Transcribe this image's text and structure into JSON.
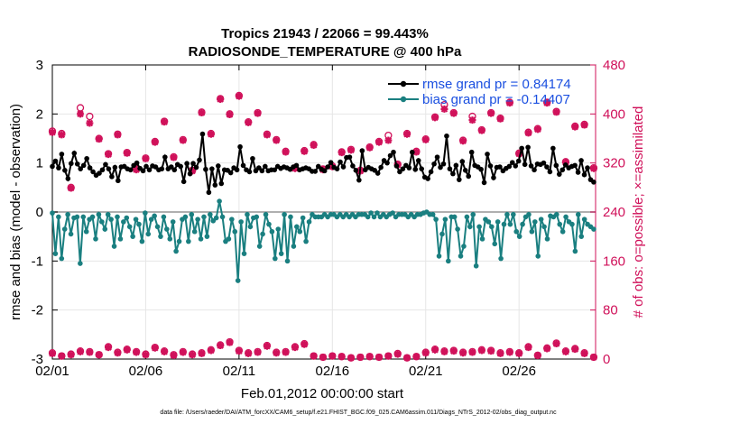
{
  "chart_data": {
    "type": "line",
    "title_line1": "Tropics 21943 / 22066 = 99.443%",
    "title_line2": "RADIOSONDE_TEMPERATURE @ 400 hPa",
    "xlabel": "Feb.01,2012 00:00:00 start",
    "ylabel": "rmse and bias (model - observation)",
    "ylabel_right": "# of obs: o=possible; ×=assimilated",
    "footer": "data file: /Users/raeder/DAI/ATM_forcXX/CAM6_setup/f.e21.FHIST_BGC.f09_025.CAM6assim.011/Diags_NTrS_2012-02/obs_diag_output.nc",
    "xlim": [
      0,
      29.1
    ],
    "ylim": [
      -3,
      3
    ],
    "ylim_right": [
      0,
      480
    ],
    "x_ticks": [
      0,
      5,
      10,
      15,
      20,
      25
    ],
    "x_tick_labels": [
      "02/01",
      "02/06",
      "02/11",
      "02/16",
      "02/21",
      "02/26"
    ],
    "y_ticks": [
      -3,
      -2,
      -1,
      0,
      1,
      2,
      3
    ],
    "y_tick_labels": [
      "-3",
      "-2",
      "-1",
      "0",
      "1",
      "2",
      "3"
    ],
    "y_ticks_right": [
      0,
      80,
      160,
      240,
      320,
      400,
      480
    ],
    "y_tick_labels_right": [
      "0",
      "80",
      "160",
      "240",
      "320",
      "400",
      "480"
    ],
    "legend": [
      "rmse grand pr = 0.84174",
      "bias grand pr = -0.14407"
    ],
    "series": [
      {
        "name": "rmse",
        "color": "#000000",
        "values": [
          0.93,
          1.04,
          0.9,
          1.18,
          0.85,
          0.68,
          0.99,
          1.2,
          0.98,
          0.88,
          0.95,
          1.09,
          0.9,
          0.82,
          0.75,
          0.79,
          0.86,
          0.97,
          0.88,
          0.72,
          0.91,
          0.64,
          0.92,
          0.93,
          0.88,
          0.86,
          0.95,
          1.0,
          0.89,
          0.84,
          0.93,
          0.86,
          0.94,
          0.92,
          0.86,
          0.88,
          1.12,
          0.88,
          0.92,
          0.86,
          0.97,
          0.93,
          0.62,
          0.99,
          0.78,
          0.99,
          0.91,
          1.06,
          1.59,
          0.87,
          0.4,
          0.88,
          0.55,
          0.94,
          0.58,
          0.86,
          0.85,
          0.8,
          0.9,
          0.86,
          1.33,
          0.95,
          0.86,
          0.82,
          1.09,
          0.84,
          0.9,
          0.84,
          0.93,
          0.84,
          0.86,
          0.86,
          0.93,
          0.89,
          0.92,
          0.9,
          0.87,
          0.92,
          0.95,
          0.86,
          0.88,
          0.9,
          0.88,
          0.83,
          0.83,
          0.93,
          0.87,
          0.84,
          0.92,
          1.01,
          0.91,
          0.88,
          1.02,
          0.92,
          1.11,
          1.12,
          0.94,
          0.85,
          0.65,
          1.25,
          0.86,
          0.91,
          0.88,
          0.85,
          0.79,
          0.91,
          1.05,
          1.0,
          1.15,
          1.22,
          0.94,
          0.82,
          0.88,
          0.95,
          0.9,
          1.22,
          0.87,
          1.05,
          0.88,
          0.71,
          0.68,
          0.82,
          0.98,
          1.12,
          0.91,
          0.98,
          1.55,
          0.88,
          0.78,
          0.95,
          0.66,
          1.03,
          0.85,
          0.73,
          1.22,
          0.95,
          0.92,
          0.87,
          0.6,
          1.18,
          0.94,
          0.7,
          0.91,
          0.92,
          0.84,
          0.89,
          0.93,
          1.01,
          0.94,
          1.04,
          1.3,
          0.97,
          1.32,
          0.94,
          0.86,
          0.98,
          0.97,
          1.0,
          0.92,
          0.82,
          1.3,
          0.95,
          0.77,
          0.86,
          0.96,
          0.9,
          0.93,
          0.95,
          0.81,
          1.05,
          0.76,
          0.9,
          0.66,
          0.61
        ]
      },
      {
        "name": "bias",
        "color": "#1a7f80",
        "values": [
          -0.02,
          -0.85,
          -0.1,
          -0.95,
          -0.35,
          -0.05,
          -0.45,
          -0.12,
          -0.1,
          -1.05,
          -0.1,
          -0.4,
          -0.15,
          -0.1,
          -0.55,
          -0.05,
          -0.2,
          -0.35,
          -0.05,
          -0.15,
          -0.7,
          -0.1,
          -0.55,
          -0.2,
          -0.12,
          -0.3,
          -0.5,
          -0.15,
          -0.25,
          -0.6,
          -0.02,
          -0.45,
          -0.15,
          -0.08,
          -0.3,
          -0.5,
          -0.1,
          -0.35,
          -0.55,
          -0.2,
          -0.8,
          -0.6,
          -0.15,
          -0.1,
          -0.6,
          -0.05,
          -0.4,
          -0.15,
          -0.55,
          -0.1,
          -0.5,
          -0.05,
          -0.18,
          -0.12,
          0.22,
          -0.1,
          -0.6,
          -0.55,
          -0.15,
          -0.4,
          -1.4,
          -0.2,
          -0.85,
          -0.05,
          -0.3,
          -0.12,
          -0.1,
          -0.7,
          -0.45,
          -0.05,
          -0.25,
          -0.4,
          -0.95,
          -0.35,
          -0.85,
          -0.05,
          -1.0,
          -0.1,
          -0.7,
          -0.3,
          -0.4,
          -0.12,
          -0.6,
          -0.2,
          -0.05,
          -0.1,
          -0.1,
          -0.1,
          -0.05,
          -0.1,
          -0.05,
          -0.05,
          -0.1,
          -0.05,
          -0.1,
          -0.05,
          -0.1,
          -0.05,
          -0.1,
          -0.05,
          -0.05,
          -0.05,
          -0.1,
          -0.02,
          -0.1,
          -0.02,
          -0.1,
          -0.05,
          -0.1,
          -0.05,
          -0.02,
          -0.1,
          -0.05,
          -0.05,
          -0.05,
          -0.1,
          -0.05,
          -0.1,
          -0.05,
          -0.05,
          -0.02,
          0.0,
          -0.05,
          -0.05,
          -0.15,
          -0.9,
          -0.45,
          -0.15,
          -1.0,
          -0.1,
          -0.1,
          -0.35,
          -0.9,
          -0.7,
          -0.1,
          -0.3,
          -0.05,
          -1.1,
          -0.3,
          -0.55,
          -0.15,
          -0.2,
          -0.3,
          -0.65,
          -0.2,
          -0.95,
          -0.25,
          -0.05,
          -0.25,
          -0.05,
          -0.4,
          -0.5,
          -0.25,
          -0.1,
          -0.05,
          -0.4,
          -0.2,
          -0.9,
          -0.15,
          -0.3,
          -0.55,
          -0.08,
          -0.1,
          -0.05,
          -0.25,
          -0.4,
          -0.1,
          -0.2,
          -0.25,
          -0.8,
          -0.05,
          -0.5,
          -0.15,
          -0.25,
          -0.3,
          -0.35
        ]
      }
    ],
    "obs_possible_upper": {
      "x": [
        0.0,
        0.5,
        1.0,
        1.5,
        2.0,
        2.5,
        3.0,
        3.5,
        4.0,
        4.5,
        5.0,
        5.5,
        6.0,
        6.5,
        7.0,
        7.5,
        8.0,
        8.5,
        9.0,
        9.5,
        10.0,
        10.5,
        11.0,
        11.5,
        12.0,
        12.5,
        13.0,
        13.5,
        14.0,
        14.5,
        15.0,
        15.5,
        16.0,
        16.5,
        17.0,
        17.5,
        18.0,
        18.5,
        19.0,
        19.5,
        20.0,
        20.5,
        21.0,
        21.5,
        22.0,
        22.5,
        23.0,
        23.5,
        24.0,
        24.5,
        25.0,
        25.5,
        26.0,
        26.5,
        27.0,
        27.5,
        28.0,
        28.5,
        29.0
      ],
      "values": [
        372,
        368,
        280,
        410,
        396,
        360,
        335,
        367,
        337,
        310,
        328,
        355,
        388,
        330,
        358,
        308,
        403,
        368,
        425,
        400,
        430,
        387,
        402,
        367,
        358,
        339,
        312,
        340,
        350,
        310,
        315,
        338,
        342,
        308,
        346,
        355,
        365,
        318,
        368,
        339,
        359,
        395,
        415,
        402,
        357,
        396,
        374,
        402,
        393,
        419,
        336,
        370,
        376,
        419,
        404,
        322,
        380,
        383,
        312
      ]
    },
    "obs_assim_upper": {
      "x": [
        0.0,
        0.5,
        1.0,
        1.5,
        2.0,
        2.5,
        3.0,
        3.5,
        4.0,
        4.5,
        5.0,
        5.5,
        6.0,
        6.5,
        7.0,
        7.5,
        8.0,
        8.5,
        9.0,
        9.5,
        10.0,
        10.5,
        11.0,
        11.5,
        12.0,
        12.5,
        13.0,
        13.5,
        14.0,
        14.5,
        15.0,
        15.5,
        16.0,
        16.5,
        17.0,
        17.5,
        18.0,
        18.5,
        19.0,
        19.5,
        20.0,
        20.5,
        21.0,
        21.5,
        22.0,
        22.5,
        23.0,
        23.5,
        24.0,
        24.5,
        25.0,
        25.5,
        26.0,
        26.5,
        27.0,
        27.5,
        28.0,
        28.5,
        29.0
      ],
      "values": [
        370,
        366,
        279,
        400,
        385,
        359,
        334,
        366,
        336,
        309,
        327,
        354,
        387,
        329,
        357,
        307,
        402,
        367,
        424,
        399,
        429,
        386,
        401,
        366,
        357,
        338,
        311,
        339,
        349,
        309,
        314,
        337,
        341,
        307,
        345,
        354,
        357,
        317,
        367,
        338,
        358,
        394,
        408,
        401,
        356,
        390,
        373,
        401,
        392,
        418,
        335,
        369,
        375,
        418,
        403,
        321,
        379,
        382,
        311
      ]
    },
    "obs_possible_lower": {
      "x": [
        0.0,
        0.5,
        1.0,
        1.5,
        2.0,
        2.5,
        3.0,
        3.5,
        4.0,
        4.5,
        5.0,
        5.5,
        6.0,
        6.5,
        7.0,
        7.5,
        8.0,
        8.5,
        9.0,
        9.5,
        10.0,
        10.5,
        11.0,
        11.5,
        12.0,
        12.5,
        13.0,
        13.5,
        14.0,
        14.5,
        15.0,
        15.5,
        16.0,
        16.5,
        17.0,
        17.5,
        18.0,
        18.5,
        19.0,
        19.5,
        20.0,
        20.5,
        21.0,
        21.5,
        22.0,
        22.5,
        23.0,
        23.5,
        24.0,
        24.5,
        25.0,
        25.5,
        26.0,
        26.5,
        27.0,
        27.5,
        28.0,
        28.5,
        29.0
      ],
      "values": [
        10,
        5,
        8,
        13,
        12,
        7,
        20,
        11,
        16,
        12,
        8,
        19,
        13,
        7,
        12,
        8,
        10,
        15,
        23,
        28,
        14,
        10,
        12,
        22,
        11,
        12,
        20,
        25,
        5,
        3,
        5,
        4,
        2,
        3,
        4,
        3,
        5,
        9,
        2,
        4,
        11,
        16,
        13,
        14,
        11,
        12,
        15,
        14,
        10,
        12,
        10,
        20,
        6,
        18,
        26,
        13,
        17,
        10,
        3
      ]
    },
    "obs_assim_lower": {
      "x": [
        0.0,
        0.5,
        1.0,
        1.5,
        2.0,
        2.5,
        3.0,
        3.5,
        4.0,
        4.5,
        5.0,
        5.5,
        6.0,
        6.5,
        7.0,
        7.5,
        8.0,
        8.5,
        9.0,
        9.5,
        10.0,
        10.5,
        11.0,
        11.5,
        12.0,
        12.5,
        13.0,
        13.5,
        14.0,
        14.5,
        15.0,
        15.5,
        16.0,
        16.5,
        17.0,
        17.5,
        18.0,
        18.5,
        19.0,
        19.5,
        20.0,
        20.5,
        21.0,
        21.5,
        22.0,
        22.5,
        23.0,
        23.5,
        24.0,
        24.5,
        25.0,
        25.5,
        26.0,
        26.5,
        27.0,
        27.5,
        28.0,
        28.5,
        29.0
      ],
      "values": [
        9,
        5,
        7,
        12,
        11,
        7,
        19,
        10,
        15,
        11,
        7,
        18,
        12,
        6,
        11,
        7,
        9,
        14,
        22,
        27,
        13,
        9,
        11,
        21,
        10,
        11,
        19,
        24,
        5,
        3,
        5,
        4,
        2,
        3,
        4,
        3,
        5,
        8,
        2,
        4,
        10,
        15,
        12,
        13,
        10,
        11,
        14,
        13,
        9,
        11,
        9,
        19,
        6,
        17,
        25,
        12,
        16,
        9,
        3
      ]
    },
    "colors": {
      "rmse": "#000000",
      "bias": "#1a7f80",
      "obs": "#d0115a",
      "legend_text": "#1a4fe0",
      "grid": "#e6e6e6",
      "zero_line": "#b0b0b0"
    }
  }
}
